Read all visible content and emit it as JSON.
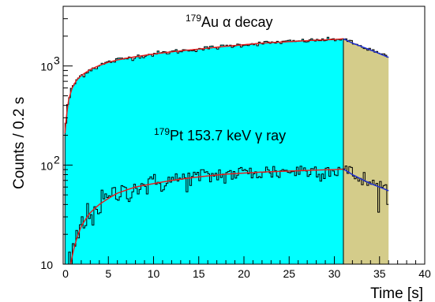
{
  "chart_data": {
    "type": "histogram",
    "xlabel": "Time [s]",
    "ylabel": "Counts / 0.2 s",
    "xlim": [
      0,
      40
    ],
    "ylim": [
      10,
      4000
    ],
    "y_scale": "log",
    "x_ticks": [
      0,
      5,
      10,
      15,
      20,
      25,
      30,
      35,
      40
    ],
    "x_tick_labels": [
      "0",
      "5",
      "10",
      "15",
      "20",
      "25",
      "30",
      "35",
      "40"
    ],
    "y_ticks": [
      10,
      100,
      1000
    ],
    "y_tick_labels": [
      "10",
      "10",
      "10"
    ],
    "y_tick_exponents": [
      "",
      "2",
      "3"
    ],
    "bin_width": 0.2,
    "beam_on_end": 31,
    "beam_off_end": 36,
    "fill_colors": {
      "beam_on": "#00ffff",
      "beam_off": "#d4cc8a"
    },
    "fit_colors": {
      "beam_on": "#e02020",
      "beam_off": "#2030d0"
    },
    "annotations": [
      {
        "name": "alpha",
        "mass": "179",
        "text": "Au α decay"
      },
      {
        "name": "gamma",
        "mass": "179",
        "text": "Pt 153.7 keV γ ray"
      }
    ],
    "series": [
      {
        "type": "filled-histogram",
        "curve_points_t": [
          0.2,
          0.6,
          1,
          1.5,
          2,
          3,
          4,
          5,
          6,
          8,
          10,
          12,
          15,
          18,
          20,
          22,
          25,
          28,
          30,
          31,
          32,
          33,
          34,
          35,
          36
        ],
        "curve_points_y": [
          210,
          450,
          600,
          720,
          800,
          920,
          1010,
          1090,
          1150,
          1240,
          1320,
          1390,
          1480,
          1580,
          1640,
          1700,
          1760,
          1820,
          1850,
          1880,
          1700,
          1570,
          1450,
          1330,
          1220
        ]
      },
      {
        "type": "line-histogram",
        "curve_points_t": [
          0.5,
          1,
          2,
          3,
          4,
          5,
          6,
          8,
          10,
          12,
          15,
          18,
          20,
          22,
          25,
          28,
          30,
          31,
          32,
          33,
          34,
          35,
          36
        ],
        "curve_points_y": [
          6,
          12,
          24,
          33,
          40,
          46,
          52,
          60,
          65,
          70,
          76,
          81,
          83,
          85,
          87,
          89,
          90,
          91,
          80,
          72,
          65,
          60,
          55
        ]
      }
    ]
  }
}
